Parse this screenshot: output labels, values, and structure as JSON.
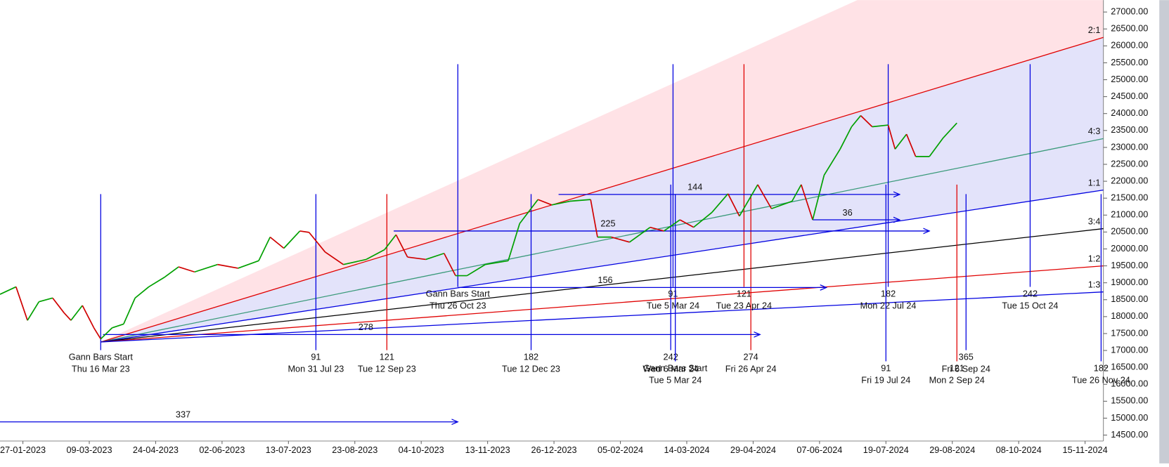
{
  "chart_data": {
    "type": "line",
    "up_color": "#00a000",
    "down_color": "#d00000",
    "xlim": [
      -10,
      472
    ],
    "ylim": [
      14324,
      27352
    ],
    "xticks": [
      {
        "value": 0,
        "label": "27-01-2023"
      },
      {
        "value": 29,
        "label": "09-03-2023"
      },
      {
        "value": 58,
        "label": "24-04-2023"
      },
      {
        "value": 87,
        "label": "02-06-2023"
      },
      {
        "value": 116,
        "label": "13-07-2023"
      },
      {
        "value": 145,
        "label": "23-08-2023"
      },
      {
        "value": 174,
        "label": "04-10-2023"
      },
      {
        "value": 203,
        "label": "13-11-2023"
      },
      {
        "value": 232,
        "label": "26-12-2023"
      },
      {
        "value": 261,
        "label": "05-02-2024"
      },
      {
        "value": 290,
        "label": "14-03-2024"
      },
      {
        "value": 319,
        "label": "29-04-2024"
      },
      {
        "value": 348,
        "label": "07-06-2024"
      },
      {
        "value": 377,
        "label": "19-07-2024"
      },
      {
        "value": 406,
        "label": "29-08-2024"
      },
      {
        "value": 435,
        "label": "08-10-2024"
      },
      {
        "value": 464,
        "label": "15-11-2024"
      }
    ],
    "yticks": [
      {
        "value": 14500,
        "label": "14500.00"
      },
      {
        "value": 15000,
        "label": "15000.00"
      },
      {
        "value": 15500,
        "label": "15500.00"
      },
      {
        "value": 16000,
        "label": "16000.00"
      },
      {
        "value": 16500,
        "label": "16500.00"
      },
      {
        "value": 17000,
        "label": "17000.00"
      },
      {
        "value": 17500,
        "label": "17500.00"
      },
      {
        "value": 18000,
        "label": "18000.00"
      },
      {
        "value": 18500,
        "label": "18500.00"
      },
      {
        "value": 19000,
        "label": "19000.00"
      },
      {
        "value": 19500,
        "label": "19500.00"
      },
      {
        "value": 20000,
        "label": "20000.00"
      },
      {
        "value": 20500,
        "label": "20500.00"
      },
      {
        "value": 21000,
        "label": "21000.00"
      },
      {
        "value": 21500,
        "label": "21500.00"
      },
      {
        "value": 22000,
        "label": "22000.00"
      },
      {
        "value": 22500,
        "label": "22500.00"
      },
      {
        "value": 23000,
        "label": "23000.00"
      },
      {
        "value": 23500,
        "label": "23500.00"
      },
      {
        "value": 24000,
        "label": "24000.00"
      },
      {
        "value": 24500,
        "label": "24500.00"
      },
      {
        "value": 25000,
        "label": "25000.00"
      },
      {
        "value": 25500,
        "label": "25500.00"
      },
      {
        "value": 26000,
        "label": "26000.00"
      },
      {
        "value": 26500,
        "label": "26500.00"
      },
      {
        "value": 27000,
        "label": "27000.00"
      }
    ],
    "x": [
      -10,
      -3,
      2,
      7,
      13,
      18,
      21,
      26,
      31,
      34,
      39,
      44,
      49,
      55,
      62,
      68,
      75,
      85,
      94,
      103,
      108,
      114,
      121,
      125,
      132,
      140,
      150,
      158,
      163,
      168,
      176,
      184,
      189,
      194,
      202,
      212,
      217,
      225,
      231,
      239,
      248,
      251,
      257,
      265,
      274,
      280,
      287,
      293,
      301,
      308,
      313,
      321,
      327,
      336,
      340,
      345,
      350,
      357,
      362,
      366,
      371,
      378,
      381,
      386,
      390,
      396,
      402,
      408
    ],
    "values": [
      18660,
      18880,
      17890,
      18440,
      18550,
      18110,
      17890,
      18330,
      17670,
      17340,
      17670,
      17780,
      18550,
      18880,
      19170,
      19470,
      19320,
      19540,
      19430,
      19650,
      20350,
      20020,
      20530,
      20490,
      19910,
      19540,
      19690,
      19980,
      20420,
      19760,
      19690,
      19870,
      19210,
      19210,
      19540,
      19650,
      20750,
      21460,
      21300,
      21410,
      21460,
      20350,
      20350,
      20200,
      20640,
      20530,
      20860,
      20640,
      21080,
      21630,
      20970,
      21900,
      21190,
      21410,
      21900,
      20860,
      22180,
      22950,
      23610,
      23940,
      23610,
      23660,
      22950,
      23390,
      22730,
      22730,
      23280,
      23720
    ],
    "fan_origin": {
      "x": 34,
      "y": 17250
    },
    "fans": [
      {
        "label": "2:1",
        "color": "#e00000",
        "end": 26250
      },
      {
        "label": "4:3",
        "color": "#3a9a7a",
        "end": 23260
      },
      {
        "label": "1:1",
        "color": "#0000e0",
        "end": 21740
      },
      {
        "label": "3:4",
        "color": "#000000",
        "end": 20600
      },
      {
        "label": "1:2",
        "color": "#e00000",
        "end": 19500
      },
      {
        "label": "1:3",
        "color": "#0000e0",
        "end": 18730
      }
    ],
    "time_markers": [
      {
        "x": 34,
        "from": 21620,
        "to": 17010,
        "color": "#0000e0",
        "label": "Gann Bars Start",
        "date": "Thu 16 Mar 23"
      },
      {
        "x": 128,
        "from": 21620,
        "to": 17010,
        "color": "#0000e0",
        "label": "91",
        "date": "Mon 31 Jul 23"
      },
      {
        "x": 159,
        "from": 21620,
        "to": 17010,
        "color": "#e00000",
        "label": "121",
        "date": "Tue 12 Sep 23"
      },
      {
        "x": 190,
        "from": 25460,
        "to": 18880,
        "color": "#0000e0",
        "label": "Gann Bars Start",
        "date": "Thu 26 Oct 23"
      },
      {
        "x": 222,
        "from": 21620,
        "to": 17010,
        "color": "#0000e0",
        "label": "182",
        "date": "Tue 12 Dec 23"
      },
      {
        "x": 283,
        "from": 21900,
        "to": 17010,
        "color": "#0000e0",
        "label": "242",
        "date": "Wed 6 Mar 24"
      },
      {
        "x": 284,
        "from": 25460,
        "to": 18880,
        "color": "#0000e0",
        "label": "91",
        "date": "Tue 5 Mar 24"
      },
      {
        "x": 285,
        "from": 21620,
        "to": 16680,
        "color": "#0000e0",
        "label": "Gann Bars Start",
        "date": "Tue 5 Mar 24"
      },
      {
        "x": 315,
        "from": 25460,
        "to": 18880,
        "color": "#e00000",
        "label": "121",
        "date": "Tue 23 Apr 24"
      },
      {
        "x": 318,
        "from": 21620,
        "to": 17010,
        "color": "#e00000",
        "label": "274",
        "date": "Fri 26 Apr 24"
      },
      {
        "x": 378,
        "from": 25460,
        "to": 18880,
        "color": "#0000e0",
        "label": "182",
        "date": "Mon 22 Jul 24"
      },
      {
        "x": 377,
        "from": 21900,
        "to": 16680,
        "color": "#0000e0",
        "label": "91",
        "date": "Fri 19 Jul 24"
      },
      {
        "x": 408,
        "from": 21900,
        "to": 16680,
        "color": "#e00000",
        "label": "121",
        "date": "Mon 2 Sep 24"
      },
      {
        "x": 412,
        "from": 21620,
        "to": 17010,
        "color": "#0000e0",
        "label": "365",
        "date": "Fri 6 Sep 24"
      },
      {
        "x": 440,
        "from": 25460,
        "to": 18880,
        "color": "#0000e0",
        "label": "242",
        "date": "Tue 15 Oct 24"
      },
      {
        "x": 471,
        "from": 21620,
        "to": 16680,
        "color": "#0000e0",
        "label": "182",
        "date": "Tue 26 Nov 24"
      }
    ],
    "arrows": [
      {
        "label": "337",
        "y": 14890,
        "x1": -10,
        "x2": 190
      },
      {
        "label": "278",
        "y": 17470,
        "x1": 35,
        "x2": 322
      },
      {
        "label": "156",
        "y": 18860,
        "x1": 190,
        "x2": 351
      },
      {
        "label": "225",
        "y": 20530,
        "x1": 162,
        "x2": 396
      },
      {
        "label": "144",
        "y": 21610,
        "x1": 234,
        "x2": 383
      },
      {
        "label": "36",
        "y": 20860,
        "x1": 345,
        "x2": 383
      }
    ]
  }
}
